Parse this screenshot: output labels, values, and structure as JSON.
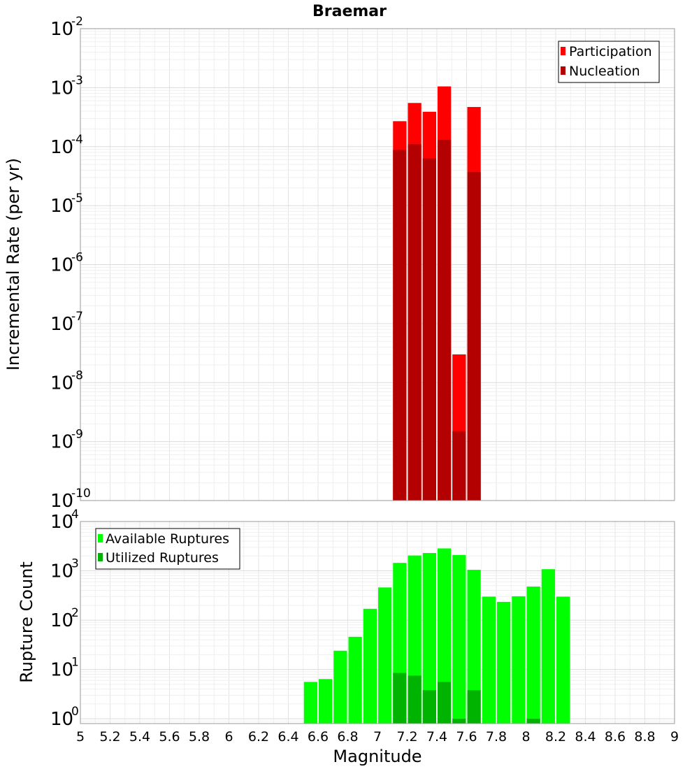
{
  "chart_data": [
    {
      "type": "bar",
      "title": "Braemar",
      "xlabel": "",
      "ylabel": "Incremental Rate (per yr)",
      "yscale": "log",
      "ylim": [
        1e-10,
        0.01
      ],
      "xlim": [
        5,
        9
      ],
      "grid": true,
      "legend_position": "top-right",
      "bin_width": 0.1,
      "y_tick_exponents": [
        "-10",
        "-9",
        "-8",
        "-7",
        "-6",
        "-5",
        "-4",
        "-3",
        "-2"
      ],
      "series": [
        {
          "name": "Participation",
          "color": "#ff0000",
          "x": [
            7.15,
            7.25,
            7.35,
            7.45,
            7.55,
            7.65
          ],
          "values": [
            0.00027,
            0.00055,
            0.00039,
            0.00105,
            3e-08,
            0.00047
          ]
        },
        {
          "name": "Nucleation",
          "color": "#b30000",
          "x": [
            7.15,
            7.25,
            7.35,
            7.45,
            7.55,
            7.65
          ],
          "values": [
            8.8e-05,
            0.00011,
            6.3e-05,
            0.00013,
            1.5e-09,
            3.7e-05
          ]
        }
      ]
    },
    {
      "type": "bar",
      "title": "",
      "xlabel": "Magnitude",
      "ylabel": "Rupture Count",
      "yscale": "log",
      "ylim": [
        0.8,
        10000
      ],
      "xlim": [
        5,
        9
      ],
      "grid": true,
      "legend_position": "top-left",
      "bin_width": 0.1,
      "x_ticks": [
        "5",
        "5.2",
        "5.4",
        "5.6",
        "5.8",
        "6",
        "6.2",
        "6.4",
        "6.6",
        "6.8",
        "7",
        "7.2",
        "7.4",
        "7.6",
        "7.8",
        "8",
        "8.2",
        "8.4",
        "8.6",
        "8.8",
        "9"
      ],
      "y_tick_exponents": [
        "0",
        "1",
        "2",
        "3",
        "4"
      ],
      "series": [
        {
          "name": "Available Ruptures",
          "color": "#00ff00",
          "x": [
            6.55,
            6.65,
            6.75,
            6.85,
            6.95,
            7.05,
            7.15,
            7.25,
            7.35,
            7.45,
            7.55,
            7.65,
            7.75,
            7.85,
            7.95,
            8.05,
            8.15,
            8.25
          ],
          "values": [
            5.6,
            6.4,
            24,
            46,
            170,
            460,
            1450,
            2050,
            2300,
            2850,
            2100,
            1050,
            300,
            235,
            305,
            480,
            1080,
            300
          ]
        },
        {
          "name": "Utilized Ruptures",
          "color": "#00b300",
          "x": [
            7.15,
            7.25,
            7.35,
            7.45,
            7.55,
            7.65,
            8.05
          ],
          "values": [
            8.5,
            7.5,
            3.8,
            5.6,
            1,
            3.8,
            1
          ]
        }
      ]
    }
  ],
  "axis_base_label": "10"
}
